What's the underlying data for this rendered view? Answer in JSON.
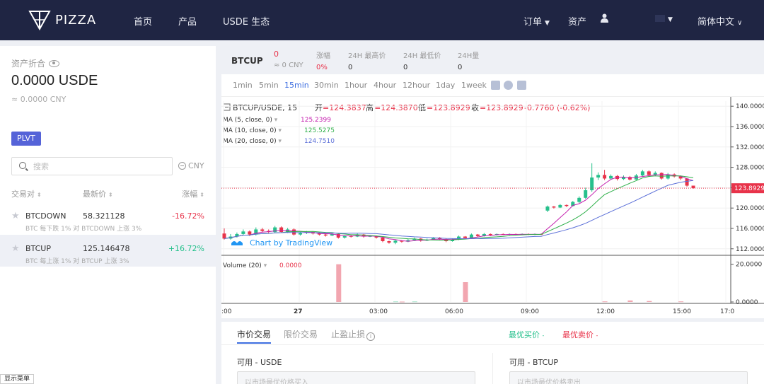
{
  "nav": {
    "brand": "PIZZA",
    "links": [
      "首页",
      "产品",
      "USDE 生态"
    ],
    "orders": "订单",
    "assets": "资产",
    "language": "简体中文"
  },
  "left": {
    "asset_label": "资产折合",
    "asset_value": "0.0000 USDE",
    "asset_cny": "≈ 0.0000 CNY",
    "tag": "PLVT",
    "search_placeholder": "搜索",
    "currency_toggle": "CNY",
    "headers": {
      "pair": "交易对",
      "price": "最新价",
      "change": "涨幅"
    },
    "rows": [
      {
        "pair": "BTCDOWN",
        "price": "58.321128",
        "change": "-16.72%",
        "desc": "BTC 每下跌 1% 对 BTCDOWN 上涨 3%"
      },
      {
        "pair": "BTCUP",
        "price": "125.146478",
        "change": "+16.72%",
        "desc": "BTC 每上涨 1% 对 BTCUP 上涨 3%"
      }
    ],
    "bottom_tip": "显示菜单"
  },
  "ticker": {
    "symbol": "BTCUP",
    "price": "0",
    "price_cny": "≈ 0 CNY",
    "change_label": "涨幅",
    "change": "0%",
    "high_label": "24H 最高价",
    "high": "0",
    "low_label": "24H 最低价",
    "low": "0",
    "vol_label": "24H量",
    "vol": "0"
  },
  "intervals": [
    "1min",
    "5min",
    "15min",
    "30min",
    "1hour",
    "4hour",
    "12hour",
    "1day",
    "1week"
  ],
  "active_interval": "15min",
  "chart_data": {
    "type": "candlestick",
    "title": "BTCUP/USDE, 15",
    "ohlc_text": {
      "open_label": "开",
      "open": "124.3837",
      "high_label": "高",
      "high": "124.3870",
      "low_label": "低",
      "low": "123.8929",
      "close_label": "收",
      "close": "123.8929",
      "change": "-0.7760 (-0.62%)"
    },
    "indicators": [
      {
        "name": "MA (5, close, 0)",
        "value": "125.2399",
        "color": "#c41fae"
      },
      {
        "name": "MA (10, close, 0)",
        "value": "125.5275",
        "color": "#2fb04a"
      },
      {
        "name": "MA (20, close, 0)",
        "value": "124.7510",
        "color": "#5b6fd8"
      }
    ],
    "y_ticks": [
      "140.0000",
      "136.0000",
      "132.0000",
      "128.0000",
      "124.0000",
      "120.0000",
      "116.0000",
      "112.0000"
    ],
    "ylim": [
      111,
      141
    ],
    "last_price": "123.8929",
    "x_ticks": [
      ":00",
      "27",
      "03:00",
      "06:00",
      "09:00",
      "12:00",
      "15:00",
      "17:0"
    ],
    "volume_label": "Volume (20)",
    "volume_value": "0.0000",
    "volume_ticks": [
      "20.0000",
      "0.0000"
    ],
    "watermark": "Chart by TradingView",
    "candles": [
      [
        115,
        114,
        116,
        113.8
      ],
      [
        114,
        114.4,
        114.9,
        113.8
      ],
      [
        114.4,
        114.9,
        115.2,
        114.2
      ],
      [
        114.9,
        115.4,
        115.8,
        114.6
      ],
      [
        115.4,
        114.8,
        115.6,
        114.5
      ],
      [
        114.8,
        115.8,
        116.2,
        114.6
      ],
      [
        115.8,
        115.5,
        116.1,
        115.2
      ],
      [
        115.5,
        115.3,
        115.8,
        115.1
      ],
      [
        115.3,
        116.2,
        116.5,
        115.1
      ],
      [
        116.2,
        115.3,
        116.4,
        115.1
      ],
      [
        115.3,
        115.8,
        116.1,
        115.1
      ],
      [
        115.8,
        114.8,
        116,
        114.6
      ],
      [
        114.8,
        115.1,
        115.3,
        114.6
      ],
      [
        115.1,
        115.3,
        115.5,
        114.9
      ],
      [
        115.3,
        115,
        115.4,
        114.8
      ],
      [
        115,
        114.8,
        115.2,
        114.6
      ],
      [
        114.8,
        114.6,
        115,
        114.4
      ],
      [
        114.6,
        114.9,
        115.1,
        114.5
      ],
      [
        114.9,
        114.2,
        115,
        114
      ],
      [
        114.2,
        114.5,
        114.6,
        114
      ],
      [
        114.5,
        114.4,
        114.7,
        114.2
      ],
      [
        114.4,
        114.8,
        115,
        114.3
      ],
      [
        114.8,
        114.4,
        114.9,
        114.2
      ],
      [
        114.4,
        114.5,
        114.7,
        114.3
      ],
      [
        114.5,
        114.2,
        114.6,
        114
      ],
      [
        114.2,
        113.5,
        114.3,
        113.3
      ],
      [
        113.5,
        113.2,
        113.6,
        113
      ],
      [
        113.2,
        113.6,
        113.8,
        112.9
      ],
      [
        113.6,
        113.4,
        113.7,
        113.2
      ],
      [
        113.4,
        113.7,
        113.9,
        113.3
      ],
      [
        113.7,
        114,
        114.2,
        113.6
      ],
      [
        114,
        113.6,
        114.1,
        113.4
      ],
      [
        113.6,
        113.8,
        114,
        113.5
      ],
      [
        113.8,
        114.2,
        114.3,
        113.7
      ],
      [
        114.2,
        113.9,
        114.3,
        113.7
      ],
      [
        113.9,
        113.5,
        114,
        113.3
      ],
      [
        113.5,
        113.8,
        114,
        113.4
      ],
      [
        113.8,
        114.4,
        114.6,
        113.7
      ],
      [
        114.4,
        114.1,
        114.5,
        114
      ],
      [
        114.1,
        114.8,
        115,
        114
      ],
      [
        114.8,
        114.5,
        114.9,
        114.3
      ],
      [
        114.5,
        114.9,
        115.1,
        114.4
      ],
      [
        114.9,
        114.7,
        115,
        114.5
      ],
      [
        114.7,
        114.9,
        115,
        114.6
      ],
      [
        114.9,
        114.8,
        115,
        114.7
      ],
      [
        114.8,
        114.9,
        115,
        114.7
      ],
      [
        114.9,
        114.8,
        115,
        114.7
      ],
      [
        114.8,
        114.9,
        115,
        114.7
      ],
      [
        114.9,
        114.8,
        115,
        114.7
      ],
      [
        114.8,
        114.9,
        115,
        114.7
      ],
      [
        114.9,
        114.8,
        115,
        114.7
      ],
      [
        119.5,
        120.3,
        120.5,
        119.2
      ],
      [
        120.3,
        120.1,
        120.4,
        119.9
      ],
      [
        120.1,
        120.6,
        120.8,
        120
      ],
      [
        120.6,
        120.4,
        120.7,
        120.2
      ],
      [
        120.4,
        121.2,
        121.4,
        120.3
      ],
      [
        121.2,
        122,
        122.3,
        121
      ],
      [
        122,
        123.5,
        124,
        121.8
      ],
      [
        123.5,
        126,
        128.8,
        123.2
      ],
      [
        126,
        126.5,
        127,
        125.5
      ],
      [
        126.5,
        125.8,
        127.5,
        125.5
      ],
      [
        125.8,
        126.3,
        126.6,
        125.6
      ],
      [
        126.3,
        125.7,
        126.5,
        125.4
      ],
      [
        125.7,
        126.1,
        126.4,
        125.5
      ],
      [
        126.1,
        125.6,
        126.3,
        125.4
      ],
      [
        125.6,
        126.4,
        126.7,
        125.5
      ],
      [
        126.4,
        127.2,
        127.5,
        126.2
      ],
      [
        127.2,
        126.5,
        127.4,
        126.2
      ],
      [
        126.5,
        126.9,
        127.2,
        126.3
      ],
      [
        126.9,
        125.8,
        127,
        125.6
      ],
      [
        125.8,
        126.6,
        126.9,
        125.6
      ],
      [
        126.6,
        126.2,
        126.8,
        126
      ],
      [
        126.2,
        125.8,
        126.4,
        125.5
      ],
      [
        125.8,
        124.4,
        125.9,
        124.2
      ],
      [
        124.4,
        123.9,
        124.4,
        123.8
      ]
    ],
    "volumes": [
      0,
      0,
      0,
      0,
      0,
      0,
      0,
      0,
      0,
      0,
      0,
      0,
      0,
      0,
      0,
      0,
      0,
      0,
      0,
      0,
      0,
      0,
      0,
      0,
      0,
      0,
      0,
      0,
      0,
      0,
      0,
      0,
      0,
      0,
      0,
      0,
      0,
      0,
      0,
      0,
      0,
      0,
      0,
      0,
      0,
      0,
      0,
      0,
      0,
      0,
      0,
      0,
      0,
      0,
      0,
      0,
      0,
      0,
      0,
      0,
      0,
      0,
      0,
      0,
      0,
      0,
      0,
      0,
      0,
      0,
      0,
      0,
      0,
      0,
      0
    ],
    "volume_bars": [
      {
        "index": 18,
        "value": 20
      },
      {
        "index": 27,
        "value": 0.3
      },
      {
        "index": 28,
        "value": 0.2
      },
      {
        "index": 30,
        "value": 0.3
      },
      {
        "index": 38,
        "value": 10.5
      },
      {
        "index": 60,
        "value": 0.3
      },
      {
        "index": 64,
        "value": 0.8
      },
      {
        "index": 67,
        "value": 0.5
      },
      {
        "index": 72,
        "value": 0.3
      }
    ],
    "colors": {
      "up": "#26c08c",
      "down": "#e8334a",
      "ma5": "#c41fae",
      "ma10": "#2fb04a",
      "ma20": "#5b6fd8"
    }
  },
  "trade": {
    "tabs": [
      "市价交易",
      "限价交易",
      "止盈止损"
    ],
    "best_buy": "最优买价",
    "best_sell": "最优卖价",
    "avail_left": "可用 - USDE",
    "avail_right": "可用 - BTCUP",
    "buy_placeholder": "以市场最优价格买入",
    "sell_placeholder": "以市场最优价格卖出"
  }
}
